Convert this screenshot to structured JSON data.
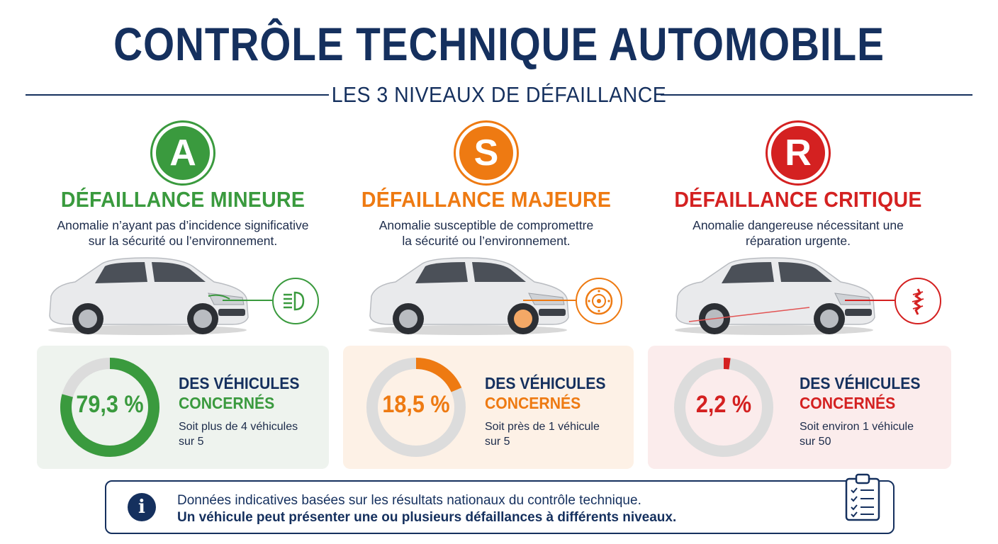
{
  "header": {
    "title": "CONTRÔLE TECHNIQUE AUTOMOBILE",
    "subtitle": "LES 3 NIVEAUX DE DÉFAILLANCE"
  },
  "levels": [
    {
      "letter": "A",
      "title": "DÉFAILLANCE MINEURE",
      "desc_line1": "Anomalie n’ayant pas d’incidence significative",
      "desc_line2": "sur la sécurité ou l’environnement.",
      "color": "#3a9a3e",
      "detail_icon": "headlight-icon",
      "percent_label": "79,3 %",
      "percent_value": 79.3,
      "stat_line1": "DES VÉHICULES",
      "stat_line2": "CONCERNÉS",
      "note_line1": "Soit plus de 4 véhicules",
      "note_line2": "sur 5"
    },
    {
      "letter": "S",
      "title": "DÉFAILLANCE MAJEURE",
      "desc_line1": "Anomalie susceptible de compromettre",
      "desc_line2": "la sécurité ou l’environnement.",
      "color": "#ee7a12",
      "detail_icon": "brake-disc-icon",
      "percent_label": "18,5 %",
      "percent_value": 18.5,
      "stat_line1": "DES VÉHICULES",
      "stat_line2": "CONCERNÉS",
      "note_line1": "Soit près de 1 véhicule",
      "note_line2": "sur 5"
    },
    {
      "letter": "R",
      "title": "DÉFAILLANCE CRITIQUE",
      "desc_line1": "Anomalie dangereuse nécessitant une",
      "desc_line2": "réparation urgente.",
      "color": "#d42121",
      "detail_icon": "broken-part-icon",
      "percent_label": "2,2 %",
      "percent_value": 2.2,
      "stat_line1": "DES VÉHICULES",
      "stat_line2": "CONCERNÉS",
      "note_line1": "Soit environ 1 véhicule",
      "note_line2": "sur 50"
    }
  ],
  "footer": {
    "line1": "Données indicatives basées sur les résultats nationaux du contrôle technique.",
    "line2": "Un véhicule peut présenter une ou plusieurs défaillances à différents niveaux.",
    "icon": "clipboard-checklist-icon"
  }
}
